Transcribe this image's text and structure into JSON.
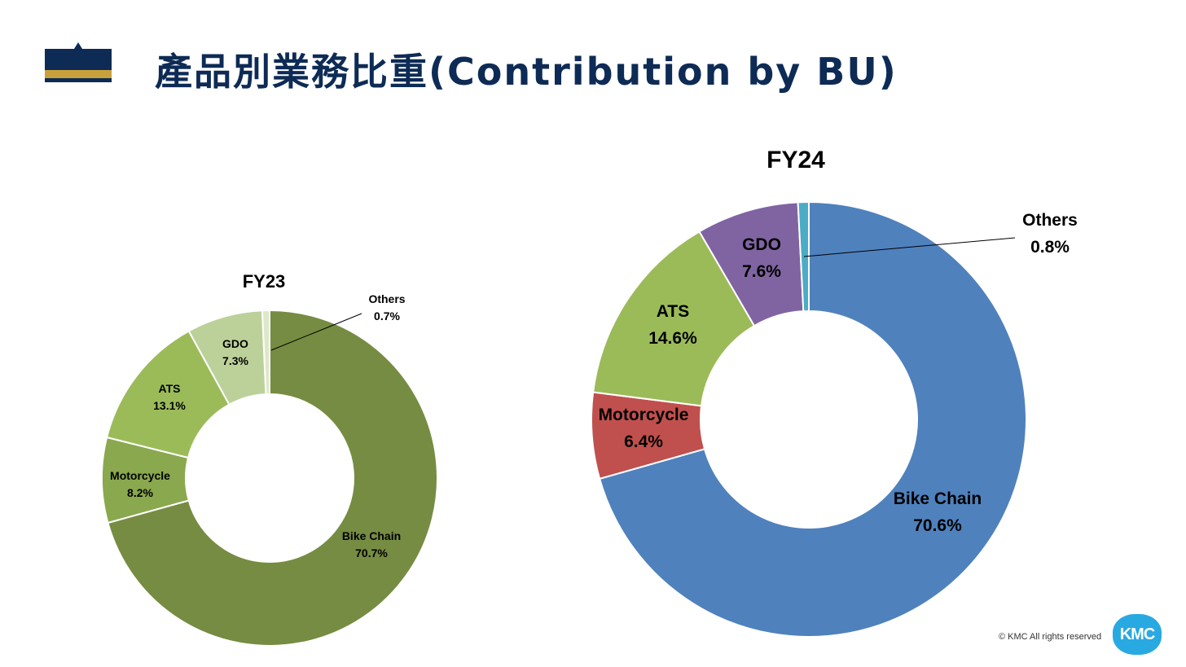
{
  "header": {
    "title": "產品別業務比重(Contribution by BU)"
  },
  "footer": {
    "copyright": "© KMC All rights reserved",
    "logo_text": "KMC"
  },
  "chart_data": [
    {
      "type": "pie",
      "title": "FY23",
      "categories": [
        "Bike Chain",
        "Motorcycle",
        "ATS",
        "GDO",
        "Others"
      ],
      "values": [
        70.7,
        8.2,
        13.1,
        7.3,
        0.7
      ],
      "value_labels": [
        "70.7%",
        "8.2%",
        "13.1%",
        "7.3%",
        "0.7%"
      ],
      "colors": [
        "#768c42",
        "#8aa84d",
        "#9bbb59",
        "#bcd19a",
        "#dce8c8"
      ],
      "donut": true
    },
    {
      "type": "pie",
      "title": "FY24",
      "categories": [
        "Bike Chain",
        "Motorcycle",
        "ATS",
        "GDO",
        "Others"
      ],
      "values": [
        70.6,
        6.4,
        14.6,
        7.6,
        0.8
      ],
      "value_labels": [
        "70.6%",
        "6.4%",
        "14.6%",
        "7.6%",
        "0.8%"
      ],
      "colors": [
        "#4f81bd",
        "#c0504d",
        "#9bbb59",
        "#8064a2",
        "#4bacc6"
      ],
      "donut": true
    }
  ]
}
